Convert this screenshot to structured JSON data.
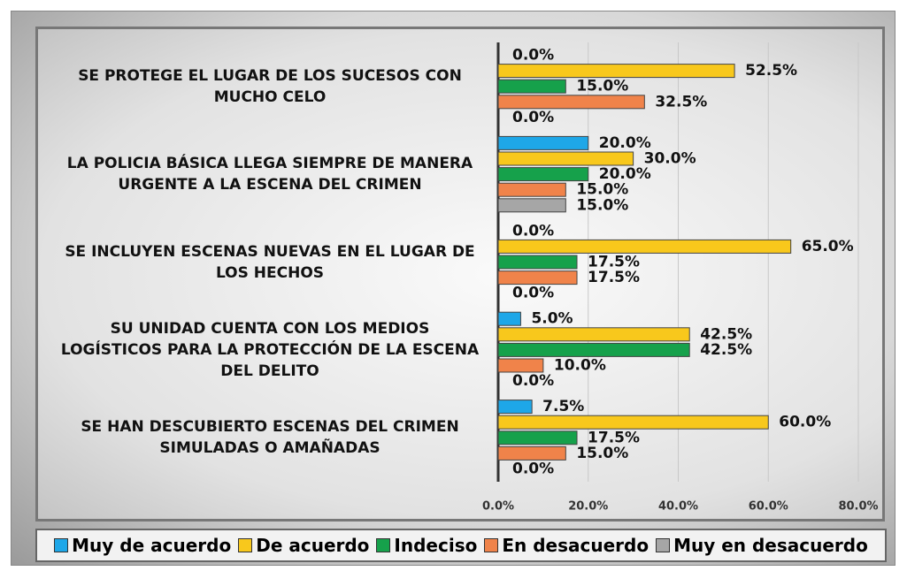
{
  "chart_data": {
    "type": "bar",
    "orientation": "horizontal",
    "categories": [
      "SE PROTEGE EL LUGAR DE LOS SUCESOS CON MUCHO CELO",
      "LA POLICIA BÁSICA LLEGA SIEMPRE DE MANERA URGENTE A LA ESCENA DEL CRIMEN",
      "SE INCLUYEN ESCENAS NUEVAS EN EL LUGAR DE LOS HECHOS",
      "SU UNIDAD CUENTA CON LOS MEDIOS LOGÍSTICOS PARA LA PROTECCIÓN DE LA ESCENA DEL DELITO",
      "SE HAN DESCUBIERTO ESCENAS DEL CRIMEN SIMULADAS O AMAÑADAS"
    ],
    "series": [
      {
        "name": "Muy de acuerdo",
        "color": "#1ea7e8",
        "values": [
          0,
          20,
          0,
          5,
          7.5
        ],
        "value_labels": [
          "0.0%",
          "20.0%",
          "0.0%",
          "5.0%",
          "7.5%"
        ]
      },
      {
        "name": "De acuerdo",
        "color": "#f8c81c",
        "values": [
          52.5,
          30,
          65,
          42.5,
          60
        ],
        "value_labels": [
          "52.5%",
          "30.0%",
          "65.0%",
          "42.5%",
          "60.0%"
        ]
      },
      {
        "name": "Indeciso",
        "color": "#16a14b",
        "values": [
          15,
          20,
          17.5,
          42.5,
          17.5
        ],
        "value_labels": [
          "15.0%",
          "20.0%",
          "17.5%",
          "42.5%",
          "17.5%"
        ]
      },
      {
        "name": "En desacuerdo",
        "color": "#f0834a",
        "values": [
          32.5,
          15,
          17.5,
          10,
          15
        ],
        "value_labels": [
          "32.5%",
          "15.0%",
          "17.5%",
          "10.0%",
          "15.0%"
        ]
      },
      {
        "name": "Muy en desacuerdo",
        "color": "#a6a6a6",
        "values": [
          0,
          15,
          0,
          0,
          0
        ],
        "value_labels": [
          "0.0%",
          "15.0%",
          "0.0%",
          "0.0%",
          "0.0%"
        ]
      }
    ],
    "xlim": [
      0,
      80
    ],
    "xticks": [
      {
        "value": 0,
        "label": "0.0%"
      },
      {
        "value": 20,
        "label": "20.0%"
      },
      {
        "value": 40,
        "label": "40.0%"
      },
      {
        "value": 60,
        "label": "60.0%"
      },
      {
        "value": 80,
        "label": "80.0%"
      }
    ],
    "grid": true
  }
}
